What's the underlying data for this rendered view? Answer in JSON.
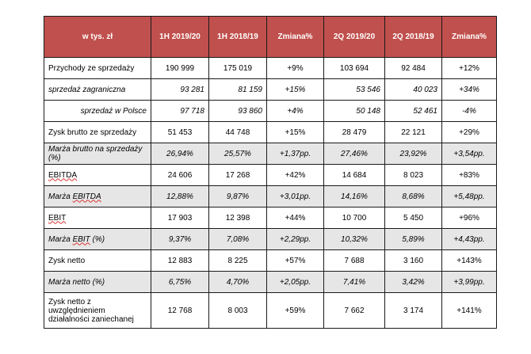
{
  "header": [
    "w tys. zł",
    "1H 2019/20",
    "1H 2018/19",
    "Zmiana%",
    "2Q 2019/20",
    "2Q 2018/19",
    "Zmiana%"
  ],
  "rows": [
    {
      "label": "Przychody ze sprzedaży",
      "values": [
        "190 999",
        "175 019",
        "+9%",
        "103 694",
        "92 484",
        "+12%"
      ]
    },
    {
      "label": "sprzedaż zagraniczna",
      "values": [
        "93 281",
        "81 159",
        "+15%",
        "53 546",
        "40 023",
        "+34%"
      ]
    },
    {
      "label": "sprzedaż w Polsce",
      "values": [
        "97 718",
        "93 860",
        "+4%",
        "50 148",
        "52 461",
        "-4%"
      ]
    },
    {
      "label": "Zysk brutto ze sprzedaży",
      "values": [
        "51 453",
        "44 748",
        "+15%",
        "28 479",
        "22 121",
        "+29%"
      ]
    },
    {
      "label": "Marża brutto na sprzedaży (%)",
      "values": [
        "26,94%",
        "25,57%",
        "+1,37pp.",
        "27,46%",
        "23,92%",
        "+3,54pp."
      ]
    },
    {
      "label": "EBITDA",
      "values": [
        "24 606",
        "17 268",
        "+42%",
        "14 684",
        "8 023",
        "+83%"
      ]
    },
    {
      "label": "Marża EBITDA",
      "values": [
        "12,88%",
        "9,87%",
        "+3,01pp.",
        "14,16%",
        "8,68%",
        "+5,48pp."
      ]
    },
    {
      "label": "EBIT",
      "values": [
        "17 903",
        "12 398",
        "+44%",
        "10 700",
        "5 450",
        "+96%"
      ]
    },
    {
      "label": "Marża EBIT (%)",
      "values": [
        "9,37%",
        "7,08%",
        "+2,29pp.",
        "10,32%",
        "5,89%",
        "+4,43pp."
      ]
    },
    {
      "label": "Zysk netto",
      "values": [
        "12 883",
        "8 225",
        "+57%",
        "7 688",
        "3 160",
        "+143%"
      ]
    },
    {
      "label": "Marża netto  (%)",
      "values": [
        "6,75%",
        "4,70%",
        "+2,05pp.",
        "7,41%",
        "3,42%",
        "+3,99pp."
      ]
    },
    {
      "label": "Zysk netto z uwzględnieniem działalności zaniechanej",
      "values": [
        "12 768",
        "8 003",
        "+59%",
        "7 662",
        "3 174",
        "+141%"
      ]
    }
  ],
  "colors": {
    "header_bg": "#c0504d",
    "header_text": "#ffffff",
    "shade": "#e6e6e6",
    "border": "#1a1a1a"
  }
}
